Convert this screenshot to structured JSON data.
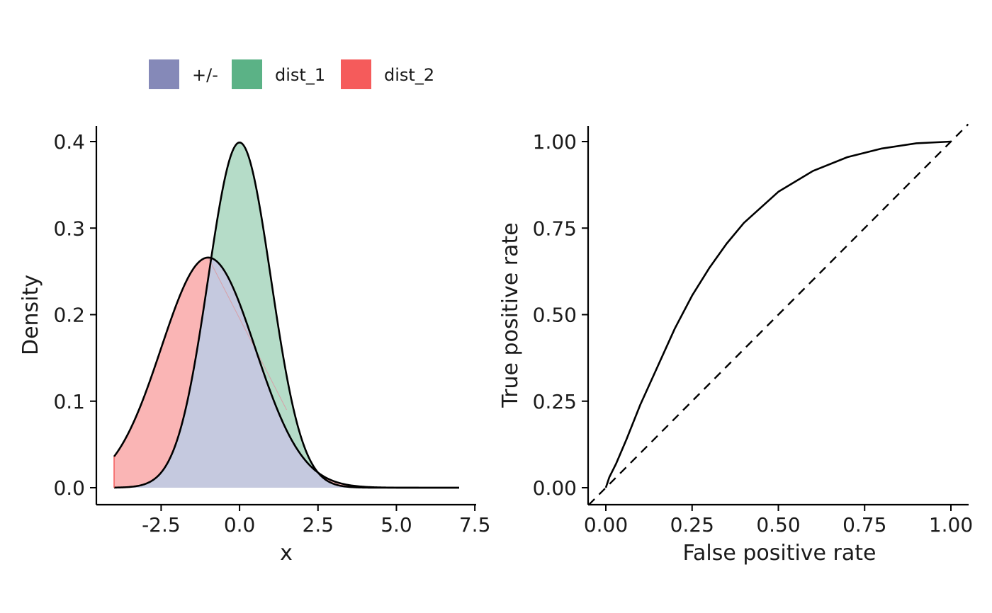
{
  "legend": {
    "items": [
      {
        "label": "+/-",
        "color": "#8589b8"
      },
      {
        "label": "dist_1",
        "color": "#5bb286"
      },
      {
        "label": "dist_2",
        "color": "#f55b5b"
      }
    ]
  },
  "chart_data": [
    {
      "type": "area",
      "xlabel": "x",
      "ylabel": "Density",
      "xlim": [
        -4,
        7
      ],
      "ylim": [
        0,
        0.4
      ],
      "x_ticks": [
        "-2.5",
        "0.0",
        "2.5",
        "5.0",
        "7.5"
      ],
      "y_ticks": [
        "0.0",
        "0.1",
        "0.2",
        "0.3",
        "0.4"
      ],
      "series": [
        {
          "name": "dist_1",
          "distribution": "normal",
          "mean": 0,
          "sd": 1,
          "color": "#5bb286"
        },
        {
          "name": "dist_2",
          "distribution": "normal",
          "mean": -1,
          "sd": 1.5,
          "color": "#f55b5b"
        },
        {
          "name": "+/-",
          "distribution": "overlap (min of dist_1, dist_2)",
          "color": "#8589b8"
        }
      ],
      "grid": false
    },
    {
      "type": "line",
      "xlabel": "False positive rate",
      "ylabel": "True positive rate",
      "xlim": [
        0,
        1
      ],
      "ylim": [
        0,
        1
      ],
      "x_ticks": [
        "0.00",
        "0.25",
        "0.50",
        "0.75",
        "1.00"
      ],
      "y_ticks": [
        "0.00",
        "0.25",
        "0.50",
        "0.75",
        "1.00"
      ],
      "roc_curve": {
        "fpr": [
          0.0,
          0.01,
          0.03,
          0.06,
          0.1,
          0.15,
          0.2,
          0.25,
          0.3,
          0.35,
          0.4,
          0.5,
          0.6,
          0.7,
          0.8,
          0.9,
          1.0
        ],
        "tpr": [
          0.0,
          0.03,
          0.07,
          0.14,
          0.24,
          0.35,
          0.46,
          0.555,
          0.635,
          0.705,
          0.765,
          0.855,
          0.915,
          0.955,
          0.98,
          0.995,
          1.0
        ]
      },
      "reference_line": {
        "style": "dashed",
        "slope": 1,
        "intercept": 0
      },
      "grid": false
    }
  ]
}
